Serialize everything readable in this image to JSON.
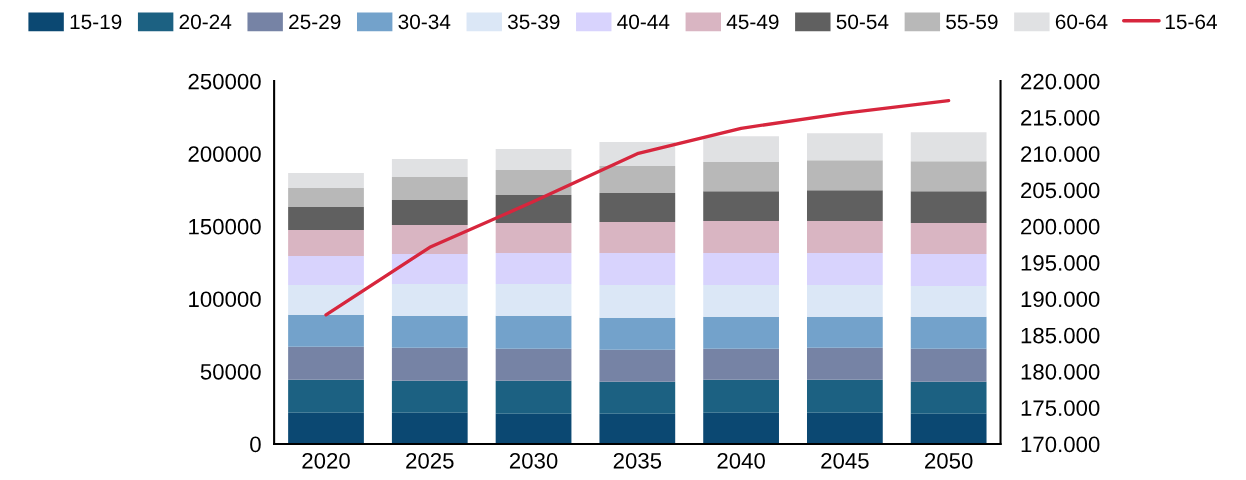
{
  "chart_data": {
    "type": "bar",
    "stacked": true,
    "legend": "top",
    "categories": [
      "2020",
      "2025",
      "2030",
      "2035",
      "2040",
      "2045",
      "2050"
    ],
    "series": [
      {
        "name": "15-19",
        "color": "#0b4872",
        "values": [
          21600,
          21600,
          20900,
          20900,
          21600,
          21600,
          20900
        ]
      },
      {
        "name": "20-24",
        "color": "#1c6182",
        "values": [
          22700,
          22000,
          22700,
          22000,
          22700,
          22700,
          22000
        ]
      },
      {
        "name": "25-29",
        "color": "#7683a5",
        "values": [
          22700,
          22700,
          22000,
          22000,
          21300,
          22000,
          22700
        ]
      },
      {
        "name": "30-34",
        "color": "#73a2cb",
        "values": [
          22000,
          22000,
          22700,
          22000,
          22000,
          21300,
          22000
        ]
      },
      {
        "name": "35-39",
        "color": "#dbe7f6",
        "values": [
          20600,
          22000,
          22000,
          22700,
          22000,
          22000,
          21300
        ]
      },
      {
        "name": "40-44",
        "color": "#d8d3fd",
        "values": [
          20000,
          20600,
          21300,
          22000,
          22000,
          22000,
          22000
        ]
      },
      {
        "name": "45-49",
        "color": "#d9b5c2",
        "values": [
          17900,
          20000,
          20600,
          21300,
          22000,
          22000,
          21300
        ]
      },
      {
        "name": "50-54",
        "color": "#606060",
        "values": [
          15800,
          17200,
          19300,
          20000,
          20600,
          21300,
          22000
        ]
      },
      {
        "name": "55-59",
        "color": "#b8b8b8",
        "values": [
          13100,
          15800,
          17200,
          18600,
          20000,
          20600,
          20600
        ]
      },
      {
        "name": "60-64",
        "color": "#e0e1e3",
        "values": [
          10300,
          12400,
          14500,
          16500,
          17900,
          18600,
          20000
        ]
      },
      {
        "name": "15-64",
        "type": "line",
        "axis": "y2",
        "color": "#d7263d",
        "values": [
          187800,
          197100,
          203400,
          210000,
          213500,
          215600,
          217300
        ]
      }
    ],
    "ylim": [
      0,
      250000
    ],
    "yticks": [
      0,
      50000,
      100000,
      150000,
      200000,
      250000
    ],
    "y2lim": [
      170000,
      220000
    ],
    "y2ticks": [
      {
        "value": 170000,
        "label": "170.000"
      },
      {
        "value": 175000,
        "label": "175.000"
      },
      {
        "value": 180000,
        "label": "180.000"
      },
      {
        "value": 185000,
        "label": "185.000"
      },
      {
        "value": 190000,
        "label": "190.000"
      },
      {
        "value": 195000,
        "label": "195.000"
      },
      {
        "value": 200000,
        "label": "200.000"
      },
      {
        "value": 205000,
        "label": "205.000"
      },
      {
        "value": 210000,
        "label": "210.000"
      },
      {
        "value": 215000,
        "label": "215.000"
      },
      {
        "value": 220000,
        "label": "220.000"
      }
    ]
  }
}
